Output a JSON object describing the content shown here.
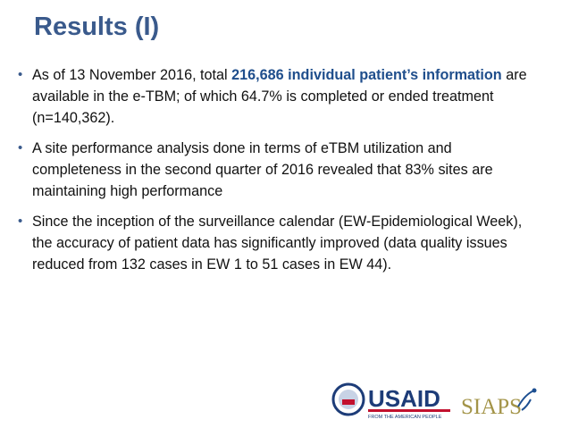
{
  "header": {
    "title": "Results (I)"
  },
  "bullets": [
    [
      {
        "text": "As of 13 November 2016, total ",
        "bold": false
      },
      {
        "text": "216,686 individual patient’s information",
        "bold": true
      },
      {
        "text": " are available in the e-TBM; of which 64.7% is completed or ended treatment (n=140,362).",
        "bold": false
      }
    ],
    [
      {
        "text": "A site performance analysis done in terms of eTBM utilization and completeness in the second quarter of 2016 revealed that 83% sites are maintaining high performance",
        "bold": false
      }
    ],
    [
      {
        "text": "Since the inception of the surveillance calendar (EW-Epidemiological Week), the accuracy of patient data has significantly improved (data quality issues reduced from 132 cases in EW 1 to 51 cases in EW 44).",
        "bold": false
      }
    ]
  ],
  "logos": {
    "usaid": "USAID",
    "usaid_tagline": "FROM THE AMERICAN PEOPLE",
    "siaps": "SIAPS"
  }
}
